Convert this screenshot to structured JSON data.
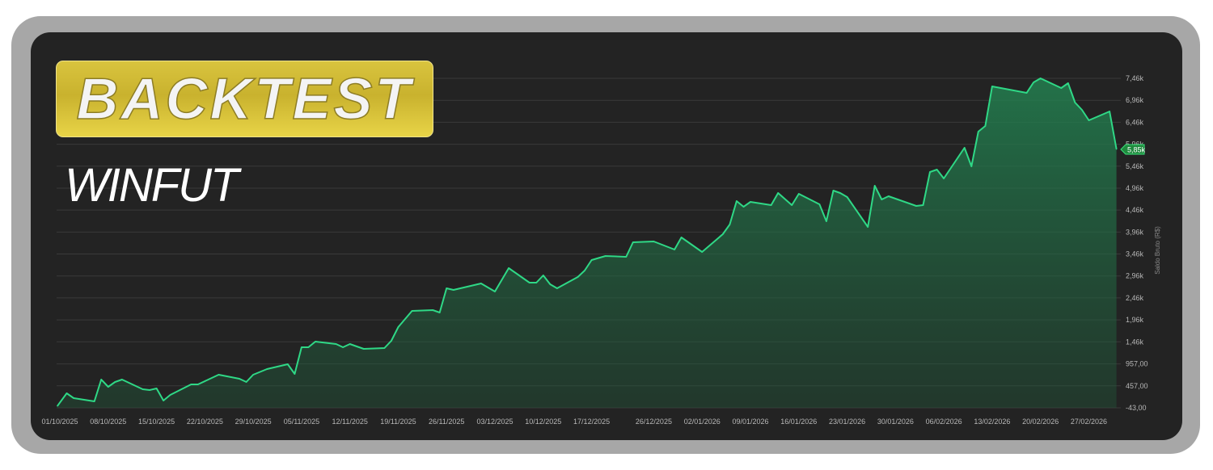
{
  "title": "BACKTEST",
  "subtitle": "WINFUT",
  "chart_data": {
    "type": "area",
    "title": "BACKTEST",
    "subtitle": "WINFUT",
    "xlabel": "",
    "ylabel": "Saldo Bruto (R$)",
    "ylim": [
      -43,
      7460
    ],
    "grid": true,
    "y_ticks": [
      -43,
      457,
      957,
      1460,
      1960,
      2460,
      2960,
      3460,
      3960,
      4460,
      4960,
      5460,
      5960,
      6460,
      6960,
      7460
    ],
    "y_tick_labels": [
      "-43,00",
      "457,00",
      "957,00",
      "1,46k",
      "1,96k",
      "2,46k",
      "2,96k",
      "3,46k",
      "3,96k",
      "4,46k",
      "4,96k",
      "5,46k",
      "5,96k",
      "6,46k",
      "6,96k",
      "7,46k"
    ],
    "x_tick_labels": [
      "01/10/2025",
      "08/10/2025",
      "15/10/2025",
      "22/10/2025",
      "29/10/2025",
      "05/11/2025",
      "12/11/2025",
      "19/11/2025",
      "26/11/2025",
      "03/12/2025",
      "10/12/2025",
      "17/12/2025",
      "26/12/2025",
      "02/01/2026",
      "09/01/2026",
      "16/01/2026",
      "23/01/2026",
      "30/01/2026",
      "06/02/2026",
      "13/02/2026",
      "20/02/2026",
      "27/02/2026"
    ],
    "last_value_label": "5,85k",
    "line_color": "#2fd886",
    "fill_color": "#1f6b45",
    "points": [
      [
        "01/10/2025",
        0
      ],
      [
        "02/10/2025",
        288
      ],
      [
        "03/10/2025",
        178
      ],
      [
        "06/10/2025",
        104
      ],
      [
        "07/10/2025",
        600
      ],
      [
        "08/10/2025",
        435
      ],
      [
        "09/10/2025",
        545
      ],
      [
        "10/10/2025",
        600
      ],
      [
        "13/10/2025",
        380
      ],
      [
        "14/10/2025",
        362
      ],
      [
        "15/10/2025",
        398
      ],
      [
        "16/10/2025",
        122
      ],
      [
        "17/10/2025",
        251
      ],
      [
        "20/10/2025",
        490
      ],
      [
        "21/10/2025",
        490
      ],
      [
        "24/10/2025",
        711
      ],
      [
        "27/10/2025",
        619
      ],
      [
        "28/10/2025",
        545
      ],
      [
        "29/10/2025",
        711
      ],
      [
        "31/10/2025",
        840
      ],
      [
        "03/11/2025",
        950
      ],
      [
        "04/11/2025",
        730
      ],
      [
        "05/11/2025",
        1336
      ],
      [
        "06/11/2025",
        1336
      ],
      [
        "07/11/2025",
        1465
      ],
      [
        "10/11/2025",
        1410
      ],
      [
        "11/11/2025",
        1336
      ],
      [
        "12/11/2025",
        1410
      ],
      [
        "13/11/2025",
        1355
      ],
      [
        "14/11/2025",
        1300
      ],
      [
        "17/11/2025",
        1318
      ],
      [
        "18/11/2025",
        1483
      ],
      [
        "19/11/2025",
        1796
      ],
      [
        "21/11/2025",
        2164
      ],
      [
        "24/11/2025",
        2182
      ],
      [
        "25/11/2025",
        2127
      ],
      [
        "26/11/2025",
        2679
      ],
      [
        "27/11/2025",
        2642
      ],
      [
        "28/11/2025",
        2679
      ],
      [
        "01/12/2025",
        2789
      ],
      [
        "03/12/2025",
        2605
      ],
      [
        "05/12/2025",
        3138
      ],
      [
        "08/12/2025",
        2808
      ],
      [
        "09/12/2025",
        2808
      ],
      [
        "10/12/2025",
        2973
      ],
      [
        "11/12/2025",
        2771
      ],
      [
        "12/12/2025",
        2679
      ],
      [
        "15/12/2025",
        2937
      ],
      [
        "16/12/2025",
        3083
      ],
      [
        "17/12/2025",
        3322
      ],
      [
        "19/12/2025",
        3414
      ],
      [
        "22/12/2025",
        3396
      ],
      [
        "23/12/2025",
        3727
      ],
      [
        "26/12/2025",
        3745
      ],
      [
        "29/12/2025",
        3561
      ],
      [
        "30/12/2025",
        3837
      ],
      [
        "02/01/2026",
        3506
      ],
      [
        "05/01/2026",
        3910
      ],
      [
        "06/01/2026",
        4131
      ],
      [
        "07/01/2026",
        4665
      ],
      [
        "08/01/2026",
        4536
      ],
      [
        "09/01/2026",
        4646
      ],
      [
        "12/01/2026",
        4573
      ],
      [
        "13/01/2026",
        4849
      ],
      [
        "15/01/2026",
        4573
      ],
      [
        "16/01/2026",
        4830
      ],
      [
        "19/01/2026",
        4591
      ],
      [
        "20/01/2026",
        4205
      ],
      [
        "21/01/2026",
        4904
      ],
      [
        "22/01/2026",
        4849
      ],
      [
        "23/01/2026",
        4757
      ],
      [
        "26/01/2026",
        4077
      ],
      [
        "27/01/2026",
        5014
      ],
      [
        "28/01/2026",
        4702
      ],
      [
        "29/01/2026",
        4775
      ],
      [
        "02/02/2026",
        4554
      ],
      [
        "03/02/2026",
        4573
      ],
      [
        "04/02/2026",
        5327
      ],
      [
        "05/02/2026",
        5382
      ],
      [
        "06/02/2026",
        5180
      ],
      [
        "09/02/2026",
        5879
      ],
      [
        "10/02/2026",
        5456
      ],
      [
        "11/02/2026",
        6246
      ],
      [
        "12/02/2026",
        6375
      ],
      [
        "13/02/2026",
        7276
      ],
      [
        "18/02/2026",
        7129
      ],
      [
        "19/02/2026",
        7368
      ],
      [
        "20/02/2026",
        7460
      ],
      [
        "23/02/2026",
        7239
      ],
      [
        "24/02/2026",
        7350
      ],
      [
        "25/02/2026",
        6908
      ],
      [
        "26/02/2026",
        6743
      ],
      [
        "27/02/2026",
        6504
      ],
      [
        "02/03/2026",
        6706
      ],
      [
        "03/03/2026",
        5850
      ]
    ]
  }
}
